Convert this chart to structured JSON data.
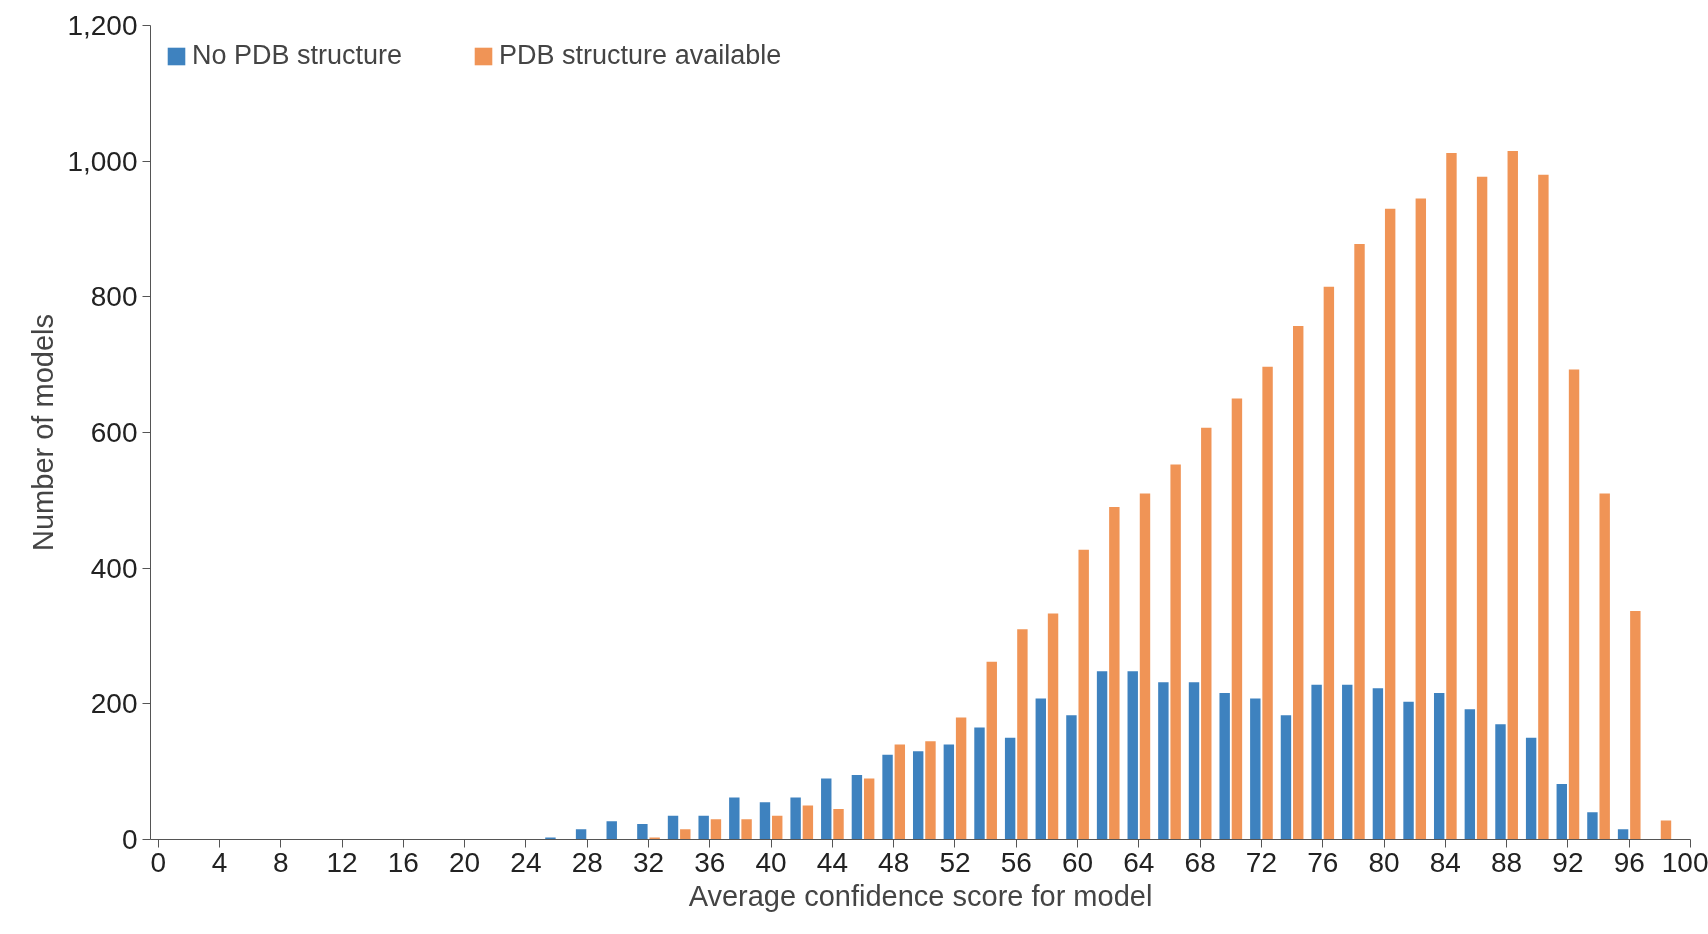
{
  "chart_data": {
    "type": "bar",
    "xlabel": "Average confidence score for model",
    "ylabel": "Number of models",
    "x": [
      26,
      28,
      30,
      32,
      34,
      36,
      38,
      40,
      42,
      44,
      46,
      48,
      50,
      52,
      54,
      56,
      58,
      60,
      62,
      64,
      66,
      68,
      70,
      72,
      74,
      76,
      78,
      80,
      82,
      84,
      86,
      88,
      90,
      92,
      94,
      96,
      98
    ],
    "series": [
      {
        "name": "No PDB structure",
        "color": "#3e82bf",
        "values": [
          3,
          15,
          27,
          23,
          35,
          35,
          62,
          55,
          62,
          90,
          95,
          125,
          130,
          140,
          165,
          150,
          208,
          183,
          248,
          248,
          232,
          232,
          216,
          208,
          183,
          228,
          228,
          223,
          203,
          216,
          192,
          170,
          150,
          82,
          40,
          15,
          0
        ]
      },
      {
        "name": "PDB structure available",
        "color": "#f09456",
        "values": [
          0,
          0,
          0,
          3,
          15,
          30,
          30,
          35,
          50,
          45,
          90,
          140,
          145,
          180,
          262,
          310,
          333,
          427,
          490,
          510,
          553,
          607,
          650,
          697,
          757,
          815,
          878,
          930,
          945,
          1012,
          977,
          1015,
          980,
          693,
          510,
          337,
          28
        ]
      }
    ],
    "xlim": [
      -0.5,
      100
    ],
    "xticks": [
      0,
      4,
      8,
      12,
      16,
      20,
      24,
      28,
      32,
      36,
      40,
      44,
      48,
      52,
      56,
      60,
      64,
      68,
      72,
      76,
      80,
      84,
      88,
      92,
      96,
      100
    ],
    "ylim": [
      0,
      1200
    ],
    "yticks": [
      {
        "value": 0,
        "label": "0"
      },
      {
        "value": 200,
        "label": "200"
      },
      {
        "value": 400,
        "label": "400"
      },
      {
        "value": 600,
        "label": "600"
      },
      {
        "value": 800,
        "label": "800"
      },
      {
        "value": 1000,
        "label": "1,000"
      },
      {
        "value": 1200,
        "label": "1,200"
      }
    ],
    "grid": false,
    "legend": "top left"
  }
}
